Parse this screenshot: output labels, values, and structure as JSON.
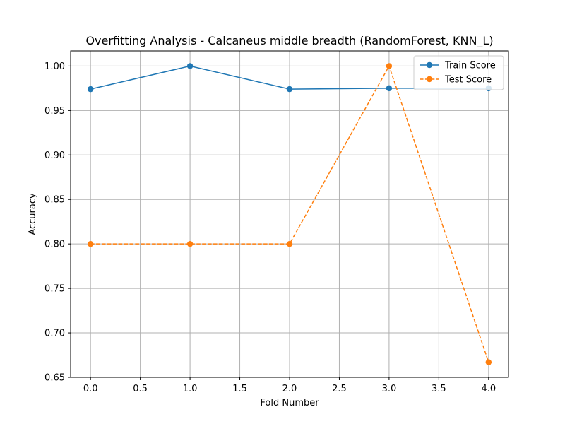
{
  "chart_data": {
    "type": "line",
    "title": "Overfitting Analysis - Calcaneus middle breadth (RandomForest, KNN_L)",
    "xlabel": "Fold Number",
    "ylabel": "Accuracy",
    "xlim": [
      -0.2,
      4.2
    ],
    "ylim": [
      0.65,
      1.017
    ],
    "xticks": [
      0.0,
      0.5,
      1.0,
      1.5,
      2.0,
      2.5,
      3.0,
      3.5,
      4.0
    ],
    "xtick_labels": [
      "0.0",
      "0.5",
      "1.0",
      "1.5",
      "2.0",
      "2.5",
      "3.0",
      "3.5",
      "4.0"
    ],
    "yticks": [
      0.65,
      0.7,
      0.75,
      0.8,
      0.85,
      0.9,
      0.95,
      1.0
    ],
    "ytick_labels": [
      "0.65",
      "0.70",
      "0.75",
      "0.80",
      "0.85",
      "0.90",
      "0.95",
      "1.00"
    ],
    "grid": true,
    "legend_position": "top-right",
    "x": [
      0,
      1,
      2,
      3,
      4
    ],
    "series": [
      {
        "name": "Train Score",
        "values": [
          0.974,
          1.0,
          0.974,
          0.975,
          0.975
        ],
        "color": "#1f77b4",
        "line_style": "solid",
        "marker": "circle"
      },
      {
        "name": "Test Score",
        "values": [
          0.8,
          0.8,
          0.8,
          1.0,
          0.667
        ],
        "color": "#ff7f0e",
        "line_style": "dashed",
        "marker": "circle"
      }
    ]
  }
}
